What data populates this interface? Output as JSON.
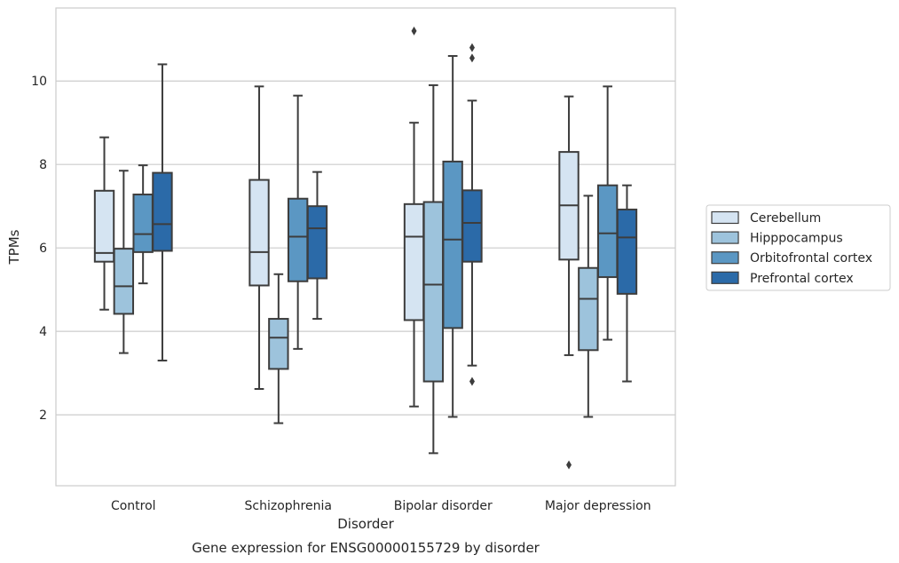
{
  "chart_data": {
    "type": "boxplot",
    "caption": "Gene expression for ENSG00000155729 by disorder",
    "xlabel": "Disorder",
    "ylabel": "TPMs",
    "categories": [
      "Control",
      "Schizophrenia",
      "Bipolar disorder",
      "Major depression"
    ],
    "ylim": [
      0.3,
      11.75
    ],
    "yticks": [
      2,
      4,
      6,
      8,
      10
    ],
    "grid": "horizontal",
    "legend_position": "right",
    "series": [
      {
        "name": "Cerebellum",
        "color": "#d5e4f2",
        "boxes": [
          {
            "whislo": 4.52,
            "q1": 5.67,
            "med": 5.88,
            "q3": 7.37,
            "whishi": 8.65,
            "fliers": []
          },
          {
            "whislo": 2.62,
            "q1": 5.1,
            "med": 5.9,
            "q3": 7.63,
            "whishi": 9.87,
            "fliers": []
          },
          {
            "whislo": 2.2,
            "q1": 4.27,
            "med": 6.27,
            "q3": 7.05,
            "whishi": 9.0,
            "fliers": [
              11.2
            ]
          },
          {
            "whislo": 3.43,
            "q1": 5.72,
            "med": 7.02,
            "q3": 8.3,
            "whishi": 9.63,
            "fliers": [
              0.8
            ]
          }
        ]
      },
      {
        "name": "Hipppocampus",
        "color": "#9dc3dc",
        "boxes": [
          {
            "whislo": 3.48,
            "q1": 4.42,
            "med": 5.08,
            "q3": 5.98,
            "whishi": 7.85,
            "fliers": []
          },
          {
            "whislo": 1.8,
            "q1": 3.1,
            "med": 3.85,
            "q3": 4.3,
            "whishi": 5.37,
            "fliers": []
          },
          {
            "whislo": 1.08,
            "q1": 2.8,
            "med": 5.12,
            "q3": 7.1,
            "whishi": 9.9,
            "fliers": []
          },
          {
            "whislo": 1.95,
            "q1": 3.55,
            "med": 4.78,
            "q3": 5.52,
            "whishi": 7.25,
            "fliers": []
          }
        ]
      },
      {
        "name": "Orbitofrontal cortex",
        "color": "#5b97c3",
        "boxes": [
          {
            "whislo": 5.15,
            "q1": 5.9,
            "med": 6.33,
            "q3": 7.28,
            "whishi": 7.98,
            "fliers": []
          },
          {
            "whislo": 3.58,
            "q1": 5.2,
            "med": 6.27,
            "q3": 7.18,
            "whishi": 9.65,
            "fliers": []
          },
          {
            "whislo": 1.95,
            "q1": 4.08,
            "med": 6.2,
            "q3": 8.07,
            "whishi": 10.6,
            "fliers": []
          },
          {
            "whislo": 3.8,
            "q1": 5.3,
            "med": 6.35,
            "q3": 7.5,
            "whishi": 9.87,
            "fliers": []
          }
        ]
      },
      {
        "name": "Prefrontal cortex",
        "color": "#2b6aa8",
        "boxes": [
          {
            "whislo": 3.3,
            "q1": 5.93,
            "med": 6.57,
            "q3": 7.8,
            "whishi": 10.4,
            "fliers": []
          },
          {
            "whislo": 4.3,
            "q1": 5.27,
            "med": 6.47,
            "q3": 7.0,
            "whishi": 7.82,
            "fliers": []
          },
          {
            "whislo": 3.18,
            "q1": 5.67,
            "med": 6.6,
            "q3": 7.38,
            "whishi": 9.53,
            "fliers": [
              2.8,
              10.55,
              10.8
            ]
          },
          {
            "whislo": 2.8,
            "q1": 4.9,
            "med": 6.25,
            "q3": 6.92,
            "whishi": 7.5,
            "fliers": []
          }
        ]
      }
    ]
  }
}
